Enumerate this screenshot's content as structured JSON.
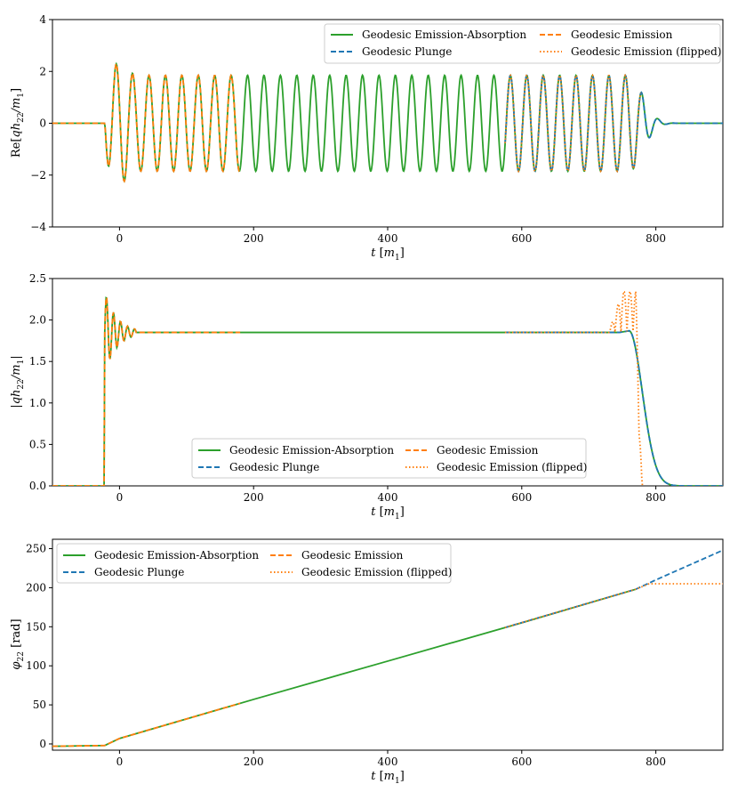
{
  "chart_data": [
    {
      "type": "line",
      "id": "re-h22",
      "ylabel": "Re[qh22/m1]",
      "xlabel": "t [m1]",
      "xlim": [
        -100,
        900
      ],
      "ylim": [
        -4,
        4
      ],
      "xticks": [
        0,
        200,
        400,
        600,
        800
      ],
      "yticks": [
        -4,
        -2,
        0,
        2,
        4
      ],
      "xtick_labels": [
        "0",
        "200",
        "400",
        "600",
        "800"
      ],
      "ytick_labels": [
        "−4",
        "−2",
        "0",
        "2",
        "4"
      ],
      "legend_position": "top-right",
      "series": [
        {
          "name": "Geodesic Emission-Absorption",
          "color": "#2ca02c",
          "style": "solid",
          "t_range": [
            -100,
            900
          ],
          "description": "oscillation amplitude ~1.85, period ~24.5"
        },
        {
          "name": "Geodesic Plunge",
          "color": "#1f77b4",
          "style": "dashed",
          "t_range": [
            575,
            900
          ]
        },
        {
          "name": "Geodesic Emission",
          "color": "#ff7f0e",
          "style": "dashed",
          "t_range": [
            -100,
            180
          ]
        },
        {
          "name": "Geodesic Emission (flipped)",
          "color": "#ff7f0e",
          "style": "dotted",
          "t_range": [
            575,
            778
          ]
        }
      ],
      "legend": {
        "col1": [
          "Geodesic Emission-Absorption",
          "Geodesic Plunge"
        ],
        "col2": [
          "Geodesic Emission",
          "Geodesic Emission (flipped)"
        ]
      },
      "key_points": {
        "pre_signal_zero_until": -22,
        "peak_near_t0": 2.35,
        "min_near_t0": -2.25,
        "steady_amplitude": 1.85,
        "ringdown_end": 830
      }
    },
    {
      "type": "line",
      "id": "abs-h22",
      "ylabel": "|qh22/m1|",
      "xlabel": "t [m1]",
      "xlim": [
        -100,
        900
      ],
      "ylim": [
        0,
        2.5
      ],
      "xticks": [
        0,
        200,
        400,
        600,
        800
      ],
      "yticks": [
        0,
        0.5,
        1.0,
        1.5,
        2.0,
        2.5
      ],
      "xtick_labels": [
        "0",
        "200",
        "400",
        "600",
        "800"
      ],
      "ytick_labels": [
        "0.0",
        "0.5",
        "1.0",
        "1.5",
        "2.0",
        "2.5"
      ],
      "legend_position": "lower-center",
      "series": [
        {
          "name": "Geodesic Emission-Absorption",
          "color": "#2ca02c",
          "style": "solid"
        },
        {
          "name": "Geodesic Plunge",
          "color": "#1f77b4",
          "style": "dashed"
        },
        {
          "name": "Geodesic Emission",
          "color": "#ff7f0e",
          "style": "dashed"
        },
        {
          "name": "Geodesic Emission (flipped)",
          "color": "#ff7f0e",
          "style": "dotted"
        }
      ],
      "legend": {
        "col1": [
          "Geodesic Emission-Absorption",
          "Geodesic Plunge"
        ],
        "col2": [
          "Geodesic Emission",
          "Geodesic Emission (flipped)"
        ]
      },
      "key_points": {
        "plateau": 1.85,
        "early_peak": 2.38,
        "late_peak_flipped": 2.38,
        "decay_end": 840
      }
    },
    {
      "type": "line",
      "id": "phi22",
      "ylabel": "φ22 [rad]",
      "xlabel": "t [m1]",
      "xlim": [
        -100,
        900
      ],
      "ylim": [
        -8,
        262
      ],
      "xticks": [
        0,
        200,
        400,
        600,
        800
      ],
      "yticks": [
        0,
        50,
        100,
        150,
        200,
        250
      ],
      "xtick_labels": [
        "0",
        "200",
        "400",
        "600",
        "800"
      ],
      "ytick_labels": [
        "0",
        "50",
        "100",
        "150",
        "200",
        "250"
      ],
      "legend_position": "top-left",
      "series": [
        {
          "name": "Geodesic Emission-Absorption",
          "color": "#2ca02c",
          "style": "solid",
          "points": [
            [
              -100,
              -3
            ],
            [
              -22,
              -2
            ],
            [
              0,
              7
            ],
            [
              200,
              57
            ],
            [
              400,
              106
            ],
            [
              600,
              155
            ],
            [
              770,
              198
            ]
          ]
        },
        {
          "name": "Geodesic Plunge",
          "color": "#1f77b4",
          "style": "dashed",
          "points": [
            [
              575,
              149
            ],
            [
              770,
              198
            ],
            [
              800,
              210
            ],
            [
              900,
              248
            ]
          ]
        },
        {
          "name": "Geodesic Emission",
          "color": "#ff7f0e",
          "style": "dashed",
          "points": [
            [
              -100,
              -3
            ],
            [
              -22,
              -2
            ],
            [
              0,
              7
            ],
            [
              180,
              52
            ]
          ]
        },
        {
          "name": "Geodesic Emission (flipped)",
          "color": "#ff7f0e",
          "style": "dotted",
          "points": [
            [
              575,
              149
            ],
            [
              770,
              198
            ],
            [
              790,
              205
            ],
            [
              900,
              205
            ]
          ]
        }
      ],
      "legend": {
        "col1": [
          "Geodesic Emission-Absorption",
          "Geodesic Plunge"
        ],
        "col2": [
          "Geodesic Emission",
          "Geodesic Emission (flipped)"
        ]
      }
    }
  ]
}
